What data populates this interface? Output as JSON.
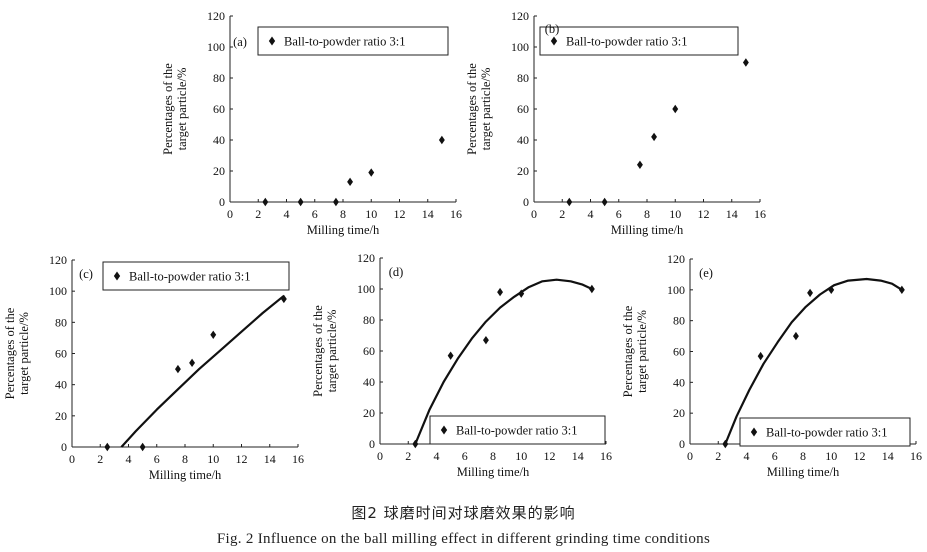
{
  "chart_data": [
    {
      "type": "scatter",
      "panel_label": "(a)",
      "legend": "Ball-to-powder ratio  3:1",
      "xlabel": "Milling time/h",
      "ylabel_line1": "Percentages of the",
      "ylabel_line2": "target particle/%",
      "xlim": [
        0,
        16
      ],
      "ylim": [
        0,
        120
      ],
      "xticks": [
        "0",
        "2",
        "4",
        "6",
        "8",
        "10",
        "12",
        "14",
        "16"
      ],
      "yticks": [
        "0",
        "20",
        "40",
        "60",
        "80",
        "100",
        "120"
      ],
      "series": [
        {
          "x": [
            2.5,
            5,
            7.5,
            8.5,
            10,
            15
          ],
          "y": [
            0,
            0,
            0,
            13,
            19,
            40
          ]
        }
      ],
      "curve": []
    },
    {
      "type": "scatter",
      "panel_label": "(b)",
      "legend": "Ball-to-powder ratio  3:1",
      "xlabel": "Milling time/h",
      "ylabel_line1": "Percentages of the",
      "ylabel_line2": "target particle/%",
      "xlim": [
        0,
        16
      ],
      "ylim": [
        0,
        120
      ],
      "xticks": [
        "0",
        "2",
        "4",
        "6",
        "8",
        "10",
        "12",
        "14",
        "16"
      ],
      "yticks": [
        "0",
        "20",
        "40",
        "60",
        "80",
        "100",
        "120"
      ],
      "series": [
        {
          "x": [
            2.5,
            5,
            7.5,
            8.5,
            10,
            15
          ],
          "y": [
            0,
            0,
            24,
            42,
            60,
            90
          ]
        }
      ],
      "curve": []
    },
    {
      "type": "scatter",
      "panel_label": "(c)",
      "legend": "Ball-to-powder ratio  3:1",
      "xlabel": "Milling time/h",
      "ylabel_line1": "Percentages of the",
      "ylabel_line2": "target particle/%",
      "xlim": [
        0,
        16
      ],
      "ylim": [
        0,
        120
      ],
      "xticks": [
        "0",
        "2",
        "4",
        "6",
        "8",
        "10",
        "12",
        "14",
        "16"
      ],
      "yticks": [
        "0",
        "20",
        "40",
        "60",
        "80",
        "100",
        "120"
      ],
      "series": [
        {
          "x": [
            2.5,
            5,
            7.5,
            8.5,
            10,
            15
          ],
          "y": [
            0,
            0,
            50,
            54,
            72,
            95
          ]
        }
      ],
      "curve": [
        [
          3.5,
          0
        ],
        [
          4.5,
          10
        ],
        [
          6,
          24
        ],
        [
          7.5,
          37
        ],
        [
          9,
          50
        ],
        [
          10.5,
          62
        ],
        [
          12,
          74
        ],
        [
          13.5,
          86
        ],
        [
          15,
          97
        ]
      ]
    },
    {
      "type": "scatter",
      "panel_label": "(d)",
      "legend": "Ball-to-powder ratio  3:1",
      "xlabel": "Milling time/h",
      "ylabel_line1": "Percentages of the",
      "ylabel_line2": "target particle/%",
      "xlim": [
        0,
        16
      ],
      "ylim": [
        0,
        120
      ],
      "xticks": [
        "0",
        "2",
        "4",
        "6",
        "8",
        "10",
        "12",
        "14",
        "16"
      ],
      "yticks": [
        "0",
        "20",
        "40",
        "60",
        "80",
        "100",
        "120"
      ],
      "series": [
        {
          "x": [
            2.5,
            5,
            7.5,
            8.5,
            10,
            15
          ],
          "y": [
            0,
            57,
            67,
            98,
            97,
            100
          ]
        }
      ],
      "curve": [
        [
          2.5,
          0
        ],
        [
          3.5,
          22
        ],
        [
          4.5,
          40
        ],
        [
          5.5,
          55
        ],
        [
          6.5,
          68
        ],
        [
          7.5,
          79
        ],
        [
          8.5,
          88
        ],
        [
          9.5,
          95
        ],
        [
          10.5,
          101
        ],
        [
          11.5,
          105
        ],
        [
          12.5,
          106
        ],
        [
          13.5,
          105
        ],
        [
          14.3,
          103
        ],
        [
          15,
          100
        ]
      ]
    },
    {
      "type": "scatter",
      "panel_label": "(e)",
      "legend": "Ball-to-powder ratio  3:1",
      "xlabel": "Milling time/h",
      "ylabel_line1": "Percentages of the",
      "ylabel_line2": "target particle/%",
      "xlim": [
        0,
        16
      ],
      "ylim": [
        0,
        120
      ],
      "xticks": [
        "0",
        "2",
        "4",
        "6",
        "8",
        "10",
        "12",
        "14",
        "16"
      ],
      "yticks": [
        "0",
        "20",
        "40",
        "60",
        "80",
        "100",
        "120"
      ],
      "series": [
        {
          "x": [
            2.5,
            5,
            7.5,
            8.5,
            10,
            15
          ],
          "y": [
            0,
            57,
            70,
            98,
            100,
            100
          ]
        }
      ],
      "curve": [
        [
          2.5,
          0
        ],
        [
          3.3,
          18
        ],
        [
          4.2,
          35
        ],
        [
          5.2,
          52
        ],
        [
          6.2,
          66
        ],
        [
          7.2,
          79
        ],
        [
          8.2,
          89
        ],
        [
          9.2,
          97
        ],
        [
          10.2,
          103
        ],
        [
          11.2,
          106
        ],
        [
          12.5,
          107
        ],
        [
          13.5,
          106
        ],
        [
          14.3,
          104
        ],
        [
          15,
          100
        ]
      ]
    }
  ],
  "caption": {
    "cn": "图2    球磨时间对球磨效果的影响",
    "en": "Fig. 2     Influence on the ball milling effect in different grinding time conditions"
  }
}
